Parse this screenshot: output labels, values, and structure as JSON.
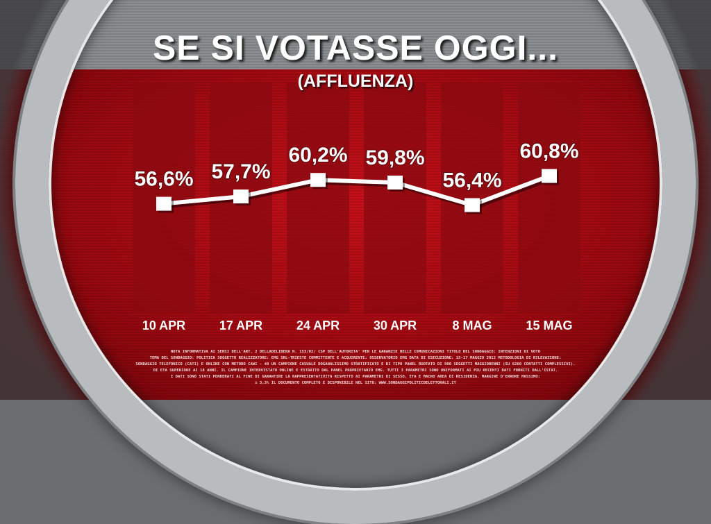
{
  "header": {
    "title": "SE SI VOTASSE OGGI...",
    "subtitle": "(AFFLUENZA)"
  },
  "colors": {
    "background_red": "#b00c14",
    "column_dark": "#8a0a10",
    "line": "#ffffff",
    "text": "#ffffff"
  },
  "chart_data": {
    "type": "line",
    "title": "SE SI VOTASSE OGGI...",
    "subtitle": "(AFFLUENZA)",
    "categories": [
      "10 APR",
      "17 APR",
      "24 APR",
      "30 APR",
      "8 MAG",
      "15 MAG"
    ],
    "values": [
      56.6,
      57.7,
      60.2,
      59.8,
      56.4,
      60.8
    ],
    "data_labels": [
      "56,6%",
      "57,7%",
      "60,2%",
      "59,8%",
      "56,4%",
      "60,8%"
    ],
    "unit": "%",
    "ylim": [
      40,
      75
    ],
    "grid": false,
    "legend": "none"
  },
  "footer": {
    "lines": [
      "NOTA INFORMATIVA AI SENSI DELL'ART. 2 DELLADELIBERA N. 153/02/ CSP DELL'AUTORITA' PER LE GARANZIE NELLE COMUNICAZIONI TITOLO DEL SONDAGGIO: INTENZIONI DI VOTO",
      "TEMA DEL SONDAGGIO: POLITICA SOGGETTO REALIZZATORE: EMG SRL-TRIESTE COMMITTENTE E ACQUIRENTE: OSSERVATORIO EMG DATA DI ESECUZIONE: 15-17 MAGGIO 2012 METODOLOGIA DI RILEVAZIONE:",
      "SONDAGGIO TELEFONICO (CATI) E ONLINE CON METODO CAWI - 40 UN CAMPIONE CASUALE DOGANALISSIMO STRATIFICATO E DI TIPO PANEL RUOTATO DI 900 SOGGETTI MAGGIORENNI (SU 6260 CONTATTI COMPLESSIVI).",
      "DI ETA SUPERIORE AI 18 ANNI. IL CAMPIONE INTERVISTATO ONLINE E ESTRATTO DAL PANEL PROPRIETARIO EMG. TUTTI I PARAMETRI SONO UNIFORMATI AI PIU RECENTI DATI FORNITI DALL'ISTAT.",
      "I DATI SONO STATI PONDERATI AL FINE DI GARANTIRE LA RAPPRESENTATIVITA RISPETTO AI PARAMETRI DI SESSO, ETA E MACRO AREA DI RESIDENZA. MARGINE D'ERRORE MASSIMO:",
      "± 3,3% IL DOCUMENTO COMPLETO E DISPONIBILE NEL SITO: WWW.SONDAGGIPOLITICOELETTORALI.IT"
    ]
  }
}
